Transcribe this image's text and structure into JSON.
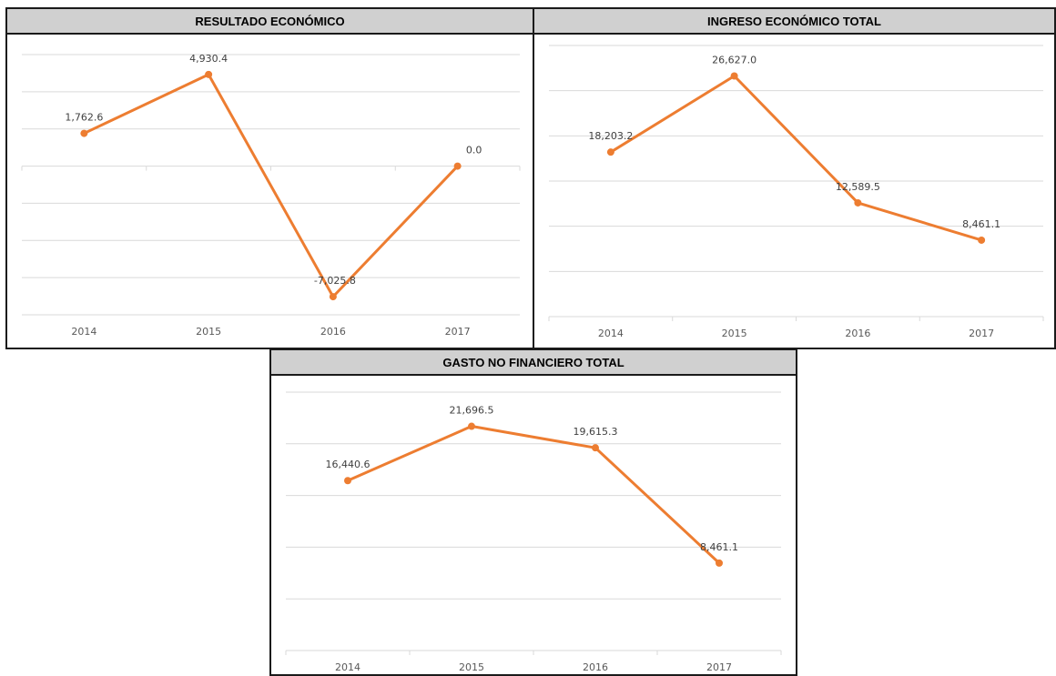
{
  "colors": {
    "series": "#ED7D31",
    "header_bg": "#D0D0D0",
    "grid": "#D9D9D9"
  },
  "chart_data": [
    {
      "type": "line",
      "title": "RESULTADO ECONÓMICO",
      "categories": [
        "2014",
        "2015",
        "2016",
        "2017"
      ],
      "values": [
        1762.6,
        4930.4,
        -7025.8,
        0.0
      ],
      "data_labels": [
        "1,762.6",
        "4,930.4",
        "-7,025.8",
        "0.0"
      ],
      "ylim": [
        -8000,
        6000
      ],
      "grid": true,
      "legend": "none"
    },
    {
      "type": "line",
      "title": "INGRESO ECONÓMICO TOTAL",
      "categories": [
        "2014",
        "2015",
        "2016",
        "2017"
      ],
      "values": [
        18203.2,
        26627.0,
        12589.5,
        8461.1
      ],
      "data_labels": [
        "18,203.2",
        "26,627.0",
        "12,589.5",
        "8,461.1"
      ],
      "ylim": [
        0,
        30000
      ],
      "grid": true,
      "legend": "none"
    },
    {
      "type": "line",
      "title": "GASTO NO FINANCIERO TOTAL",
      "categories": [
        "2014",
        "2015",
        "2016",
        "2017"
      ],
      "values": [
        16440.6,
        21696.5,
        19615.3,
        8461.1
      ],
      "data_labels": [
        "16,440.6",
        "21,696.5",
        "19,615.3",
        "8,461.1"
      ],
      "ylim": [
        0,
        25000
      ],
      "grid": true,
      "legend": "none"
    }
  ]
}
